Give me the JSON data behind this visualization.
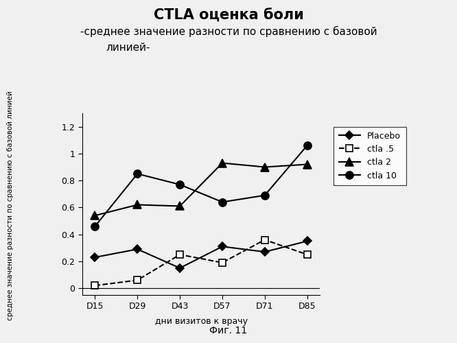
{
  "title_line1": "CTLA оценка боли",
  "subtitle_line1": "-среднее значение разности по сравнению с базовой",
  "subtitle_line2": "линией-",
  "xlabel": "дни визитов к врачу",
  "ylabel": "среднее значение разности по сравнению с базовой линией",
  "caption": "Фиг. 11",
  "x_labels": [
    "D15",
    "D29",
    "D43",
    "D57",
    "D71",
    "D85"
  ],
  "x_values": [
    0,
    1,
    2,
    3,
    4,
    5
  ],
  "series": [
    {
      "label": "Placebo",
      "values": [
        0.23,
        0.29,
        0.15,
        0.31,
        0.27,
        0.35
      ],
      "color": "#000000",
      "marker": "D",
      "markersize": 6,
      "linestyle": "-",
      "markerfacecolor": "#000000"
    },
    {
      "label": "ctla .5",
      "values": [
        0.02,
        0.06,
        0.25,
        0.19,
        0.36,
        0.25
      ],
      "color": "#000000",
      "marker": "s",
      "markersize": 7,
      "linestyle": "--",
      "markerfacecolor": "#ffffff"
    },
    {
      "label": "ctla 2",
      "values": [
        0.54,
        0.62,
        0.61,
        0.93,
        0.9,
        0.92
      ],
      "color": "#000000",
      "marker": "^",
      "markersize": 8,
      "linestyle": "-",
      "markerfacecolor": "#000000"
    },
    {
      "label": "ctla 10",
      "values": [
        0.46,
        0.85,
        0.77,
        0.64,
        0.69,
        1.06
      ],
      "color": "#000000",
      "marker": "o",
      "markersize": 8,
      "linestyle": "-",
      "markerfacecolor": "#000000"
    }
  ],
  "ylim": [
    -0.05,
    1.3
  ],
  "yticks": [
    0,
    0.2,
    0.4,
    0.6,
    0.8,
    1.0,
    1.2
  ],
  "ytick_labels": [
    "0",
    "0.2",
    "0.4",
    "0.6",
    "0.8",
    "1",
    "1.2"
  ],
  "background_color": "#f0f0f0",
  "title_fontsize": 15,
  "subtitle_fontsize": 11,
  "axis_label_fontsize": 9,
  "tick_fontsize": 9,
  "legend_fontsize": 9,
  "caption_fontsize": 10
}
